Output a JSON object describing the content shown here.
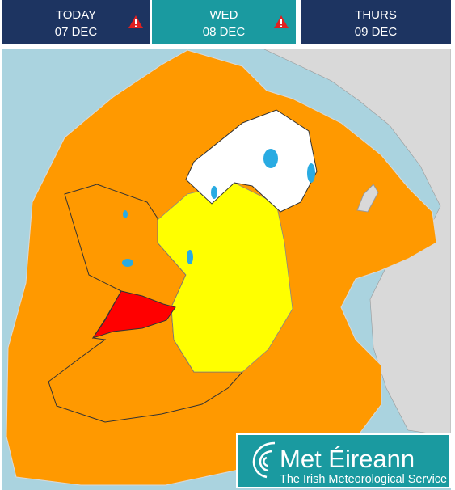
{
  "tabs": [
    {
      "day": "TODAY",
      "date": "07 DEC"
    },
    {
      "day": "WED",
      "date": "08 DEC"
    },
    {
      "day": "THURS",
      "date": "09 DEC"
    }
  ],
  "logo": {
    "name": "Met Éireann",
    "tagline": "The Irish Meteorological Service"
  }
}
